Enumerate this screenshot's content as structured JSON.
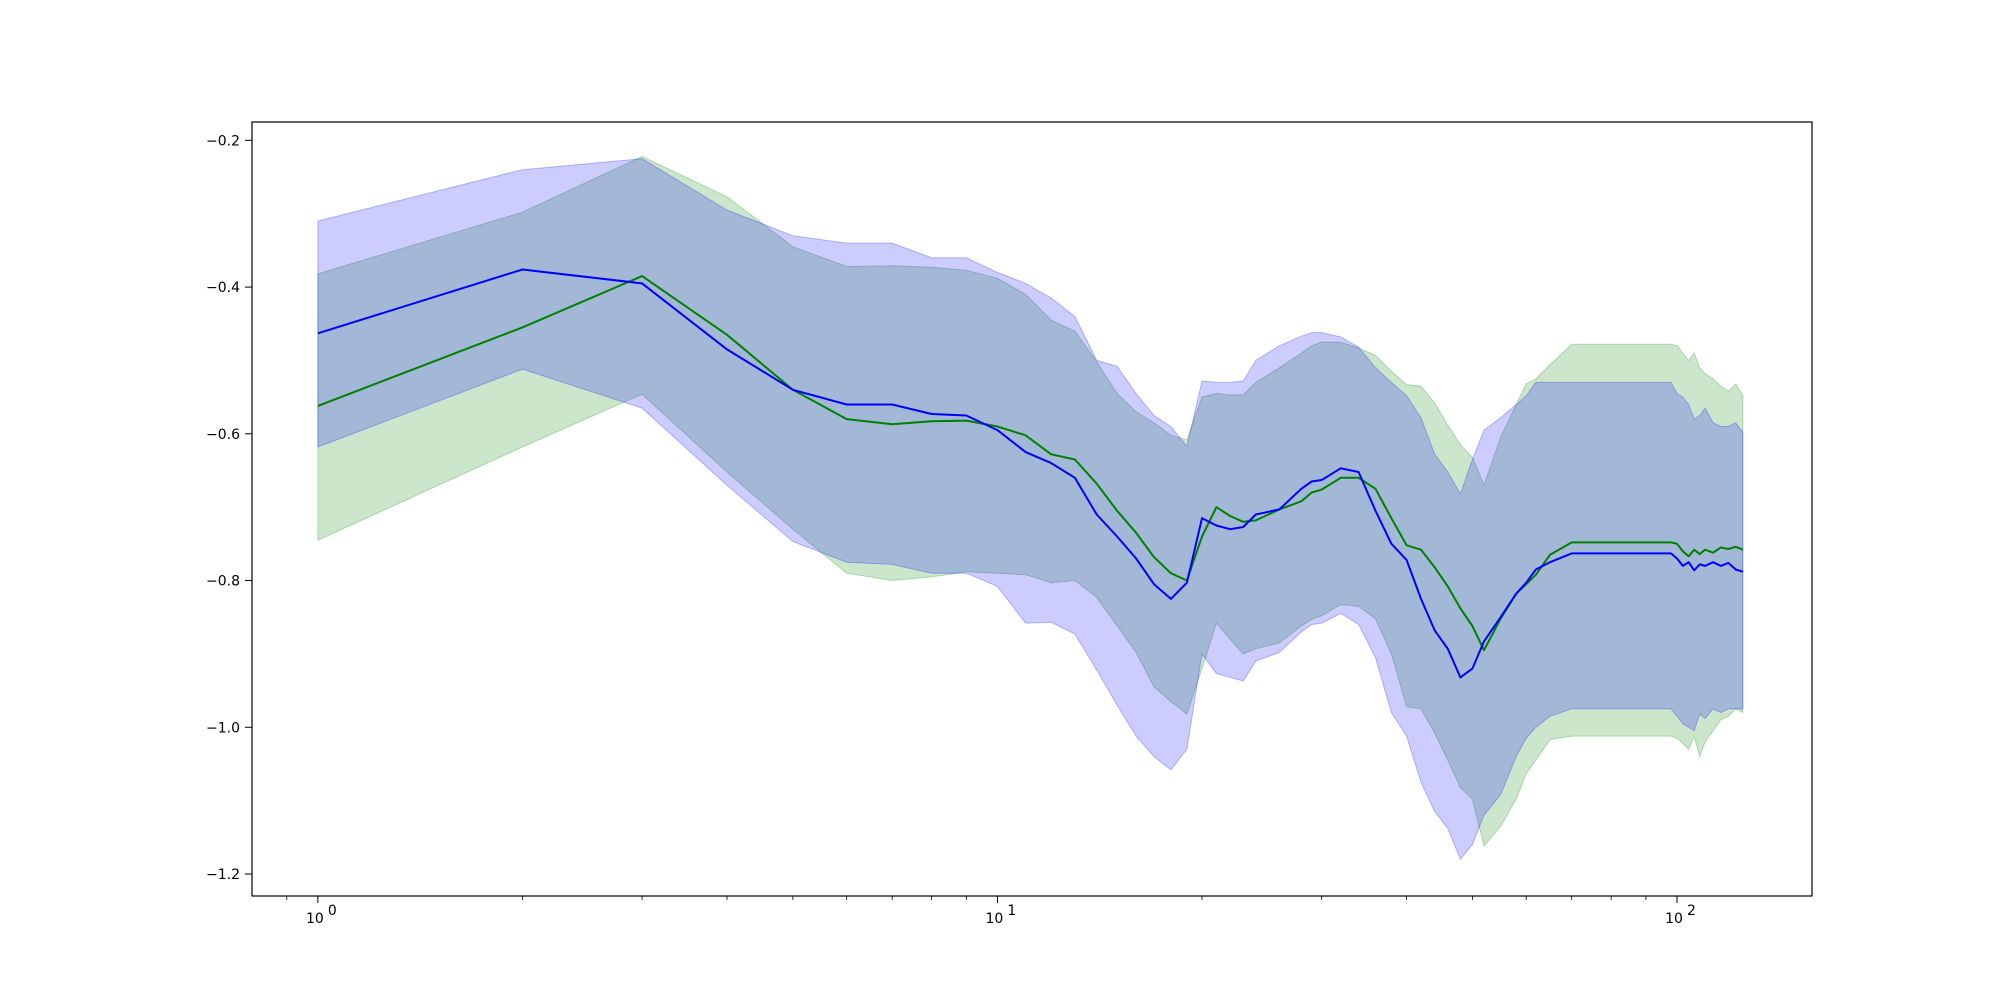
{
  "chart_data": {
    "type": "line",
    "xscale": "log",
    "xlim": [
      0.8,
      158
    ],
    "ylim": [
      -1.23,
      -0.175
    ],
    "grid": false,
    "legend": "none",
    "x_ticks": [
      {
        "value": 1,
        "base": "10",
        "exp": "0"
      },
      {
        "value": 10,
        "base": "10",
        "exp": "1"
      },
      {
        "value": 100,
        "base": "10",
        "exp": "2"
      }
    ],
    "y_ticks": [
      {
        "value": -1.2,
        "label": "−1.2"
      },
      {
        "value": -1.0,
        "label": "−1.0"
      },
      {
        "value": -0.8,
        "label": "−0.8"
      },
      {
        "value": -0.6,
        "label": "−0.6"
      },
      {
        "value": -0.4,
        "label": "−0.4"
      },
      {
        "value": -0.2,
        "label": "−0.2"
      }
    ],
    "series": [
      {
        "color": "#008000",
        "fill_color": "#008000",
        "x": [
          1,
          2,
          3,
          4,
          5,
          6,
          7,
          8,
          9,
          10,
          11,
          12,
          13,
          14,
          15,
          16,
          17,
          18,
          19,
          20,
          21,
          22,
          23,
          24,
          26,
          28,
          29,
          30,
          32,
          34,
          36,
          38,
          40,
          42,
          44,
          46,
          48,
          50,
          52,
          55,
          58,
          60,
          62,
          65,
          70,
          80,
          90,
          98,
          100,
          102,
          104,
          106,
          108,
          110,
          113,
          116,
          119,
          122,
          125
        ],
        "y": [
          -0.562,
          -0.455,
          -0.385,
          -0.465,
          -0.54,
          -0.58,
          -0.587,
          -0.583,
          -0.582,
          -0.59,
          -0.602,
          -0.628,
          -0.635,
          -0.668,
          -0.705,
          -0.735,
          -0.768,
          -0.79,
          -0.8,
          -0.74,
          -0.7,
          -0.712,
          -0.72,
          -0.718,
          -0.703,
          -0.692,
          -0.68,
          -0.676,
          -0.66,
          -0.66,
          -0.675,
          -0.715,
          -0.752,
          -0.758,
          -0.782,
          -0.808,
          -0.838,
          -0.862,
          -0.895,
          -0.852,
          -0.818,
          -0.805,
          -0.792,
          -0.765,
          -0.748,
          -0.748,
          -0.748,
          -0.748,
          -0.75,
          -0.76,
          -0.767,
          -0.758,
          -0.764,
          -0.758,
          -0.762,
          -0.755,
          -0.757,
          -0.754,
          -0.758
        ],
        "upper": [
          -0.382,
          -0.298,
          -0.222,
          -0.277,
          -0.345,
          -0.372,
          -0.371,
          -0.373,
          -0.377,
          -0.388,
          -0.41,
          -0.445,
          -0.46,
          -0.502,
          -0.545,
          -0.57,
          -0.585,
          -0.602,
          -0.608,
          -0.55,
          -0.545,
          -0.547,
          -0.547,
          -0.53,
          -0.51,
          -0.49,
          -0.48,
          -0.475,
          -0.475,
          -0.483,
          -0.493,
          -0.515,
          -0.533,
          -0.535,
          -0.558,
          -0.588,
          -0.615,
          -0.632,
          -0.67,
          -0.605,
          -0.56,
          -0.532,
          -0.525,
          -0.506,
          -0.478,
          -0.478,
          -0.478,
          -0.478,
          -0.48,
          -0.49,
          -0.5,
          -0.49,
          -0.51,
          -0.518,
          -0.525,
          -0.535,
          -0.542,
          -0.532,
          -0.548
        ],
        "lower": [
          -0.745,
          -0.618,
          -0.546,
          -0.652,
          -0.73,
          -0.79,
          -0.8,
          -0.795,
          -0.788,
          -0.79,
          -0.792,
          -0.803,
          -0.8,
          -0.823,
          -0.862,
          -0.898,
          -0.945,
          -0.965,
          -0.982,
          -0.92,
          -0.858,
          -0.88,
          -0.9,
          -0.893,
          -0.885,
          -0.862,
          -0.853,
          -0.848,
          -0.833,
          -0.835,
          -0.852,
          -0.9,
          -0.972,
          -0.975,
          -1.008,
          -1.045,
          -1.082,
          -1.098,
          -1.162,
          -1.135,
          -1.098,
          -1.063,
          -1.045,
          -1.017,
          -1.012,
          -1.012,
          -1.012,
          -1.012,
          -1.015,
          -1.022,
          -1.03,
          -1.012,
          -1.04,
          -1.02,
          -1.005,
          -0.99,
          -0.985,
          -0.975,
          -0.98
        ]
      },
      {
        "color": "#0000ff",
        "fill_color": "#0000ff",
        "x": [
          1,
          2,
          3,
          4,
          5,
          6,
          7,
          8,
          9,
          10,
          11,
          12,
          13,
          14,
          15,
          16,
          17,
          18,
          19,
          20,
          21,
          22,
          23,
          24,
          26,
          28,
          29,
          30,
          32,
          34,
          36,
          38,
          40,
          42,
          44,
          46,
          48,
          50,
          52,
          55,
          58,
          60,
          62,
          65,
          70,
          80,
          90,
          98,
          100,
          102,
          104,
          106,
          108,
          110,
          113,
          116,
          119,
          122,
          125
        ],
        "y": [
          -0.463,
          -0.376,
          -0.395,
          -0.485,
          -0.54,
          -0.56,
          -0.56,
          -0.573,
          -0.575,
          -0.595,
          -0.625,
          -0.64,
          -0.66,
          -0.71,
          -0.74,
          -0.77,
          -0.805,
          -0.825,
          -0.803,
          -0.715,
          -0.725,
          -0.73,
          -0.727,
          -0.71,
          -0.703,
          -0.675,
          -0.665,
          -0.663,
          -0.647,
          -0.652,
          -0.705,
          -0.75,
          -0.772,
          -0.825,
          -0.868,
          -0.893,
          -0.932,
          -0.92,
          -0.883,
          -0.85,
          -0.818,
          -0.803,
          -0.785,
          -0.775,
          -0.763,
          -0.763,
          -0.763,
          -0.763,
          -0.77,
          -0.78,
          -0.775,
          -0.786,
          -0.778,
          -0.78,
          -0.775,
          -0.78,
          -0.776,
          -0.785,
          -0.788
        ],
        "upper": [
          -0.31,
          -0.24,
          -0.225,
          -0.295,
          -0.33,
          -0.34,
          -0.34,
          -0.36,
          -0.36,
          -0.38,
          -0.395,
          -0.415,
          -0.44,
          -0.5,
          -0.508,
          -0.545,
          -0.575,
          -0.59,
          -0.617,
          -0.528,
          -0.53,
          -0.53,
          -0.528,
          -0.5,
          -0.48,
          -0.467,
          -0.462,
          -0.462,
          -0.468,
          -0.482,
          -0.51,
          -0.53,
          -0.548,
          -0.578,
          -0.628,
          -0.652,
          -0.682,
          -0.635,
          -0.595,
          -0.578,
          -0.56,
          -0.548,
          -0.53,
          -0.53,
          -0.53,
          -0.53,
          -0.53,
          -0.53,
          -0.545,
          -0.55,
          -0.56,
          -0.58,
          -0.575,
          -0.565,
          -0.585,
          -0.59,
          -0.59,
          -0.585,
          -0.598
        ],
        "lower": [
          -0.618,
          -0.512,
          -0.565,
          -0.67,
          -0.747,
          -0.775,
          -0.778,
          -0.79,
          -0.79,
          -0.808,
          -0.858,
          -0.857,
          -0.873,
          -0.922,
          -0.97,
          -1.012,
          -1.04,
          -1.058,
          -1.03,
          -0.9,
          -0.927,
          -0.932,
          -0.937,
          -0.91,
          -0.898,
          -0.87,
          -0.86,
          -0.858,
          -0.845,
          -0.86,
          -0.905,
          -0.98,
          -1.012,
          -1.075,
          -1.115,
          -1.138,
          -1.18,
          -1.16,
          -1.12,
          -1.092,
          -1.04,
          -1.015,
          -1.0,
          -0.985,
          -0.975,
          -0.975,
          -0.975,
          -0.975,
          -0.985,
          -0.995,
          -1.0,
          -1.005,
          -0.982,
          -0.988,
          -0.975,
          -0.98,
          -0.975,
          -0.975,
          -0.975
        ]
      }
    ]
  }
}
